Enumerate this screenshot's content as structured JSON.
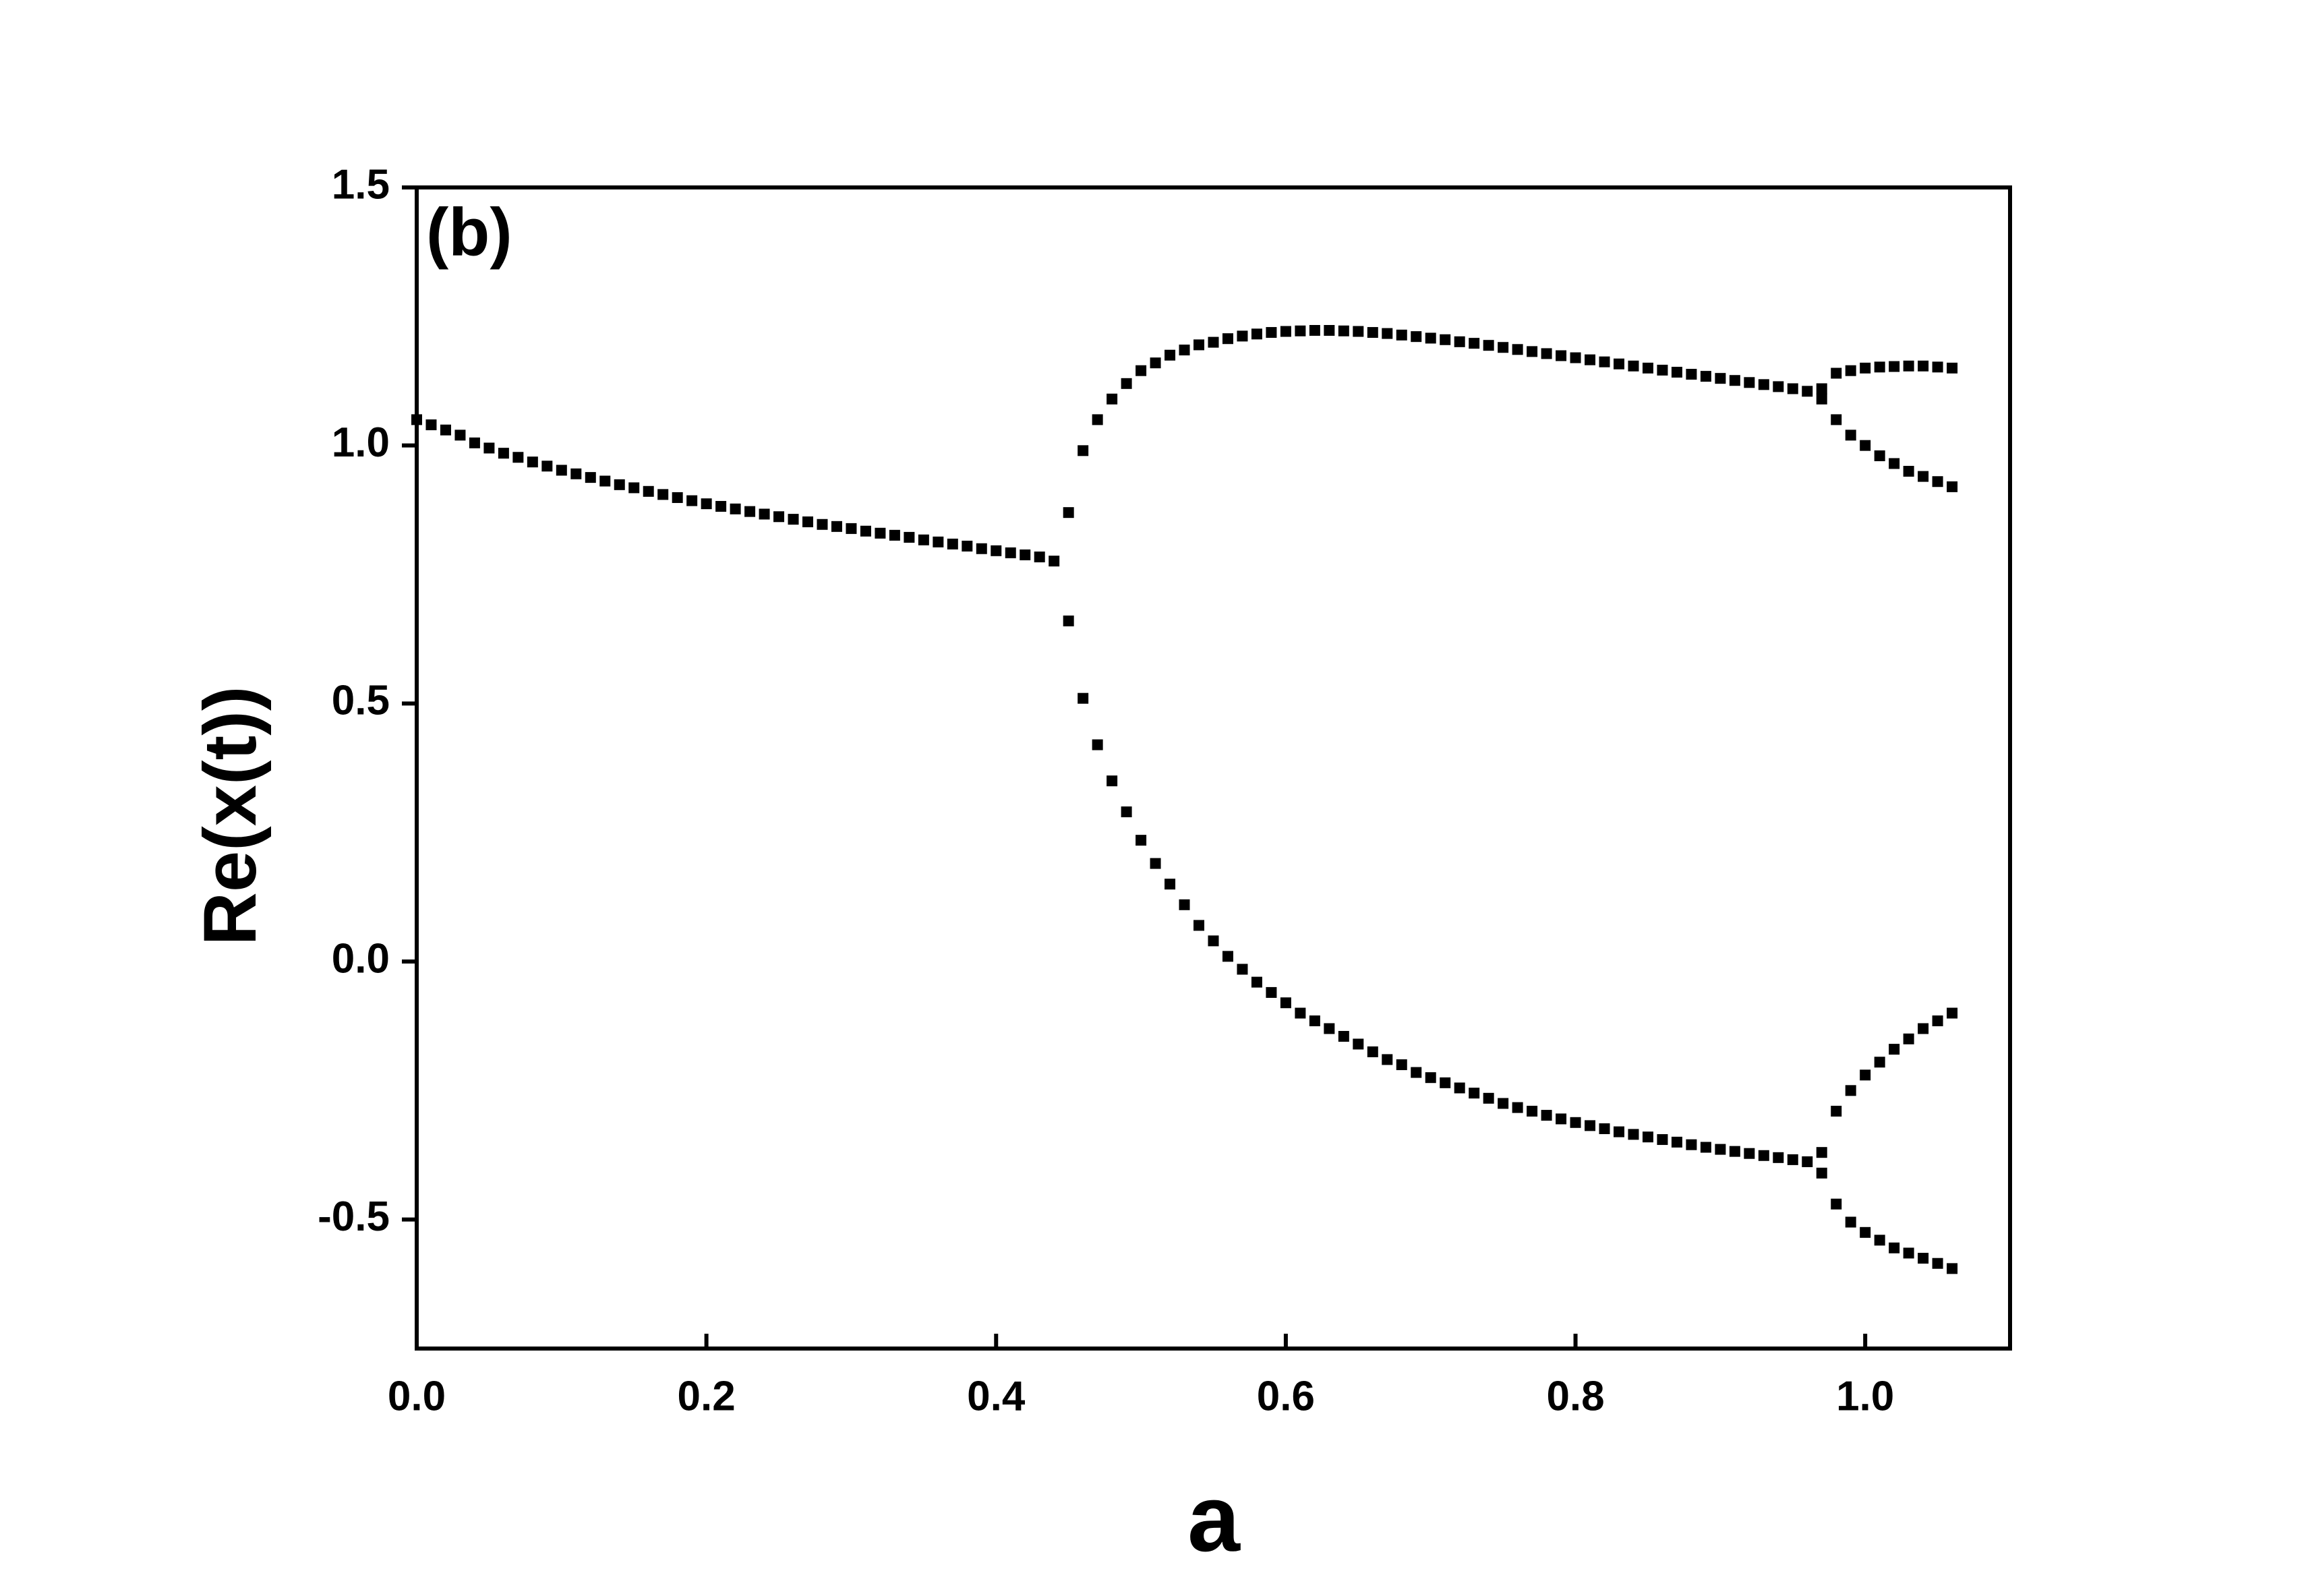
{
  "chart_data": {
    "type": "scatter",
    "annotation": "(b)",
    "x_label": "a",
    "y_label": "Re(x(t))",
    "color": "#000000",
    "xlim": [
      0,
      1.1
    ],
    "ylim": [
      -0.75,
      1.5
    ],
    "xticks": [
      {
        "value": 0,
        "label": "0.0"
      },
      0.2,
      0.4,
      0.6,
      0.8,
      {
        "value": 1,
        "label": "1.0"
      }
    ],
    "yticks": [
      -0.5,
      {
        "value": 0,
        "label": "0.0"
      },
      0.5,
      {
        "value": 1,
        "label": "1.0"
      },
      1.5
    ],
    "series": [
      {
        "x": [
          0,
          0.01,
          0.02,
          0.03,
          0.04,
          0.05,
          0.06,
          0.07,
          0.08,
          0.09,
          0.1,
          0.11,
          0.12,
          0.13,
          0.14,
          0.15,
          0.16,
          0.17,
          0.18,
          0.19,
          0.2,
          0.21,
          0.22,
          0.23,
          0.24,
          0.25,
          0.26,
          0.27,
          0.28,
          0.29,
          0.3,
          0.31,
          0.32,
          0.33,
          0.34,
          0.35,
          0.36,
          0.37,
          0.38,
          0.39,
          0.4,
          0.41,
          0.42,
          0.43,
          0.44
        ],
        "values": [
          1.05,
          1.04,
          1.03,
          1.02,
          1.005,
          0.995,
          0.985,
          0.977,
          0.968,
          0.96,
          0.952,
          0.945,
          0.938,
          0.931,
          0.924,
          0.918,
          0.911,
          0.905,
          0.899,
          0.893,
          0.887,
          0.882,
          0.877,
          0.872,
          0.867,
          0.862,
          0.857,
          0.852,
          0.847,
          0.843,
          0.839,
          0.834,
          0.83,
          0.826,
          0.822,
          0.817,
          0.813,
          0.809,
          0.805,
          0.8,
          0.796,
          0.792,
          0.788,
          0.784,
          0.776
        ]
      },
      {
        "x": [
          0.45,
          0.46,
          0.47,
          0.48,
          0.49,
          0.5,
          0.51,
          0.52,
          0.53,
          0.54,
          0.55,
          0.56,
          0.57,
          0.58,
          0.59,
          0.6,
          0.61,
          0.62,
          0.63,
          0.64,
          0.65,
          0.66,
          0.67,
          0.68,
          0.69,
          0.7,
          0.71,
          0.72,
          0.73,
          0.74,
          0.75,
          0.76,
          0.77,
          0.78,
          0.79,
          0.8,
          0.81,
          0.82,
          0.83,
          0.84,
          0.85,
          0.86,
          0.87,
          0.88,
          0.89,
          0.9,
          0.91,
          0.92,
          0.93,
          0.94,
          0.95,
          0.96,
          0.97,
          0.97
        ],
        "values": [
          0.87,
          0.99,
          1.05,
          1.09,
          1.12,
          1.145,
          1.16,
          1.175,
          1.185,
          1.195,
          1.2,
          1.207,
          1.212,
          1.216,
          1.219,
          1.221,
          1.222,
          1.223,
          1.223,
          1.222,
          1.221,
          1.219,
          1.217,
          1.214,
          1.211,
          1.208,
          1.205,
          1.201,
          1.198,
          1.194,
          1.19,
          1.186,
          1.182,
          1.178,
          1.174,
          1.17,
          1.166,
          1.162,
          1.158,
          1.154,
          1.15,
          1.146,
          1.142,
          1.138,
          1.134,
          1.13,
          1.126,
          1.122,
          1.118,
          1.114,
          1.11,
          1.105,
          1.11,
          1.09
        ]
      },
      {
        "x": [
          0.98,
          0.99,
          1,
          1.01,
          1.02,
          1.03,
          1.04,
          1.05,
          1.06
        ],
        "values": [
          1.14,
          1.145,
          1.15,
          1.152,
          1.153,
          1.154,
          1.154,
          1.152,
          1.15
        ]
      },
      {
        "x": [
          0.98,
          0.99,
          1,
          1.01,
          1.02,
          1.03,
          1.04,
          1.05,
          1.06
        ],
        "values": [
          1.05,
          1.02,
          1,
          0.98,
          0.965,
          0.95,
          0.94,
          0.93,
          0.92
        ]
      },
      {
        "x": [
          0.45,
          0.46,
          0.47,
          0.48,
          0.49,
          0.5,
          0.51,
          0.52,
          0.53,
          0.54,
          0.55,
          0.56,
          0.57,
          0.58,
          0.59,
          0.6,
          0.61,
          0.62,
          0.63,
          0.64,
          0.65,
          0.66,
          0.67,
          0.68,
          0.69,
          0.7,
          0.71,
          0.72,
          0.73,
          0.74,
          0.75,
          0.76,
          0.77,
          0.78,
          0.79,
          0.8,
          0.81,
          0.82,
          0.83,
          0.84,
          0.85,
          0.86,
          0.87,
          0.88,
          0.89,
          0.9,
          0.91,
          0.92,
          0.93,
          0.94,
          0.95,
          0.96,
          0.97,
          0.97
        ],
        "values": [
          0.66,
          0.51,
          0.42,
          0.35,
          0.29,
          0.235,
          0.19,
          0.15,
          0.11,
          0.07,
          0.04,
          0.01,
          -0.015,
          -0.04,
          -0.06,
          -0.08,
          -0.1,
          -0.115,
          -0.13,
          -0.145,
          -0.16,
          -0.175,
          -0.19,
          -0.2,
          -0.215,
          -0.225,
          -0.235,
          -0.245,
          -0.255,
          -0.265,
          -0.275,
          -0.283,
          -0.29,
          -0.298,
          -0.305,
          -0.312,
          -0.318,
          -0.324,
          -0.33,
          -0.335,
          -0.34,
          -0.345,
          -0.35,
          -0.355,
          -0.36,
          -0.364,
          -0.368,
          -0.372,
          -0.376,
          -0.38,
          -0.384,
          -0.388,
          -0.37,
          -0.41
        ]
      },
      {
        "x": [
          0.98,
          0.99,
          1,
          1.01,
          1.02,
          1.03,
          1.04,
          1.05,
          1.06
        ],
        "values": [
          -0.29,
          -0.25,
          -0.22,
          -0.195,
          -0.17,
          -0.15,
          -0.13,
          -0.115,
          -0.1
        ]
      },
      {
        "x": [
          0.98,
          0.99,
          1,
          1.01,
          1.02,
          1.03,
          1.04,
          1.05,
          1.06
        ],
        "values": [
          -0.47,
          -0.505,
          -0.525,
          -0.54,
          -0.555,
          -0.565,
          -0.575,
          -0.585,
          -0.595
        ]
      }
    ]
  }
}
